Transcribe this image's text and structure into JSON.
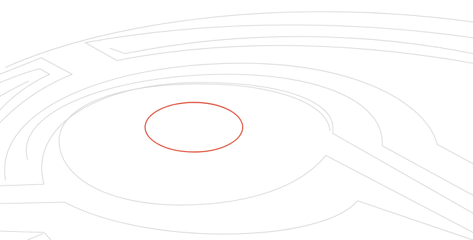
{
  "illustration": {
    "subject": "labyrinth-illustration",
    "colors": {
      "maze_lines": "#d4d4d4",
      "center_ring": "#d8361f",
      "background": "#ffffff"
    },
    "icons": [
      "labyrinth-icon",
      "center-ring-icon"
    ]
  }
}
